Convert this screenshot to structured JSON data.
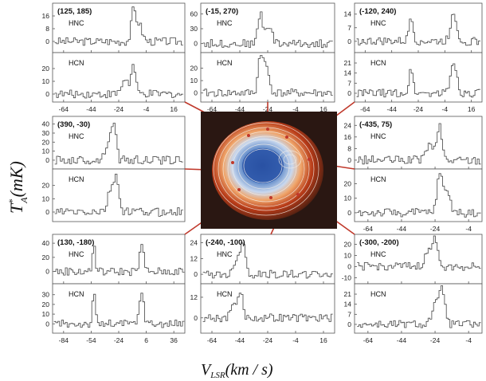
{
  "figure": {
    "ylabel_main": "T",
    "ylabel_sup": "*",
    "ylabel_sub": "A",
    "ylabel_unit": "(mK)",
    "xlabel_main": "V",
    "xlabel_sub": "LSR",
    "xlabel_unit": "(km / s)"
  },
  "chart_data": [
    {
      "type": "line",
      "title": "(125, 185)",
      "xticks": [
        -64,
        -44,
        -24,
        -4,
        16
      ],
      "xlim": [
        -72,
        24
      ],
      "series": [
        {
          "name": "HNC",
          "yticks": [
            0,
            8,
            16
          ],
          "ylim": [
            -6,
            22
          ],
          "peak_v": -14,
          "peak_t": 18,
          "peak2_v": -10,
          "peak2_t": 11
        },
        {
          "name": "HCN",
          "yticks": [
            0,
            10,
            20
          ],
          "ylim": [
            -5,
            30
          ],
          "peak_v": -14,
          "peak_t": 22,
          "peak2_v": -20,
          "peak2_t": 12
        }
      ]
    },
    {
      "type": "line",
      "title": "(-15, 270)",
      "xticks": [
        -64,
        -44,
        -24,
        -4,
        16
      ],
      "xlim": [
        -72,
        24
      ],
      "series": [
        {
          "name": "HNC",
          "yticks": [
            0,
            30,
            60
          ],
          "ylim": [
            -15,
            75
          ],
          "peak_v": -30,
          "peak_t": 62,
          "peak2_v": -24,
          "peak2_t": 38
        },
        {
          "name": "HCN",
          "yticks": [
            0,
            10,
            20
          ],
          "ylim": [
            -6,
            30
          ],
          "peak_v": -30,
          "peak_t": 28,
          "peak2_v": -26,
          "peak2_t": 22
        }
      ]
    },
    {
      "type": "line",
      "title": "(-120, 240)",
      "xticks": [
        -64,
        -44,
        -24,
        -4,
        16
      ],
      "xlim": [
        -72,
        24
      ],
      "series": [
        {
          "name": "HNC",
          "yticks": [
            0,
            7,
            14
          ],
          "ylim": [
            -5,
            18
          ],
          "peak_v": -30,
          "peak_t": 13,
          "peak2_v": 2,
          "peak2_t": 15
        },
        {
          "name": "HCN",
          "yticks": [
            0,
            7,
            14,
            21
          ],
          "ylim": [
            -5,
            26
          ],
          "peak_v": -30,
          "peak_t": 16,
          "peak2_v": 2,
          "peak2_t": 22
        }
      ]
    },
    {
      "type": "line",
      "title": "(390, -30)",
      "xticks": [],
      "xlim": [
        -72,
        24
      ],
      "series": [
        {
          "name": "HNC",
          "yticks": [
            0,
            10,
            20,
            30,
            40
          ],
          "ylim": [
            -8,
            45
          ],
          "peak_v": -28,
          "peak_t": 40,
          "peak2_v": -32,
          "peak2_t": 22
        },
        {
          "name": "HCN",
          "yticks": [
            0,
            10,
            20
          ],
          "ylim": [
            -6,
            30
          ],
          "peak_v": -26,
          "peak_t": 24,
          "peak2_v": -30,
          "peak2_t": 18
        }
      ]
    },
    {
      "type": "line",
      "title": "(-435, 75)",
      "xticks": [
        -64,
        -44,
        -24,
        -4
      ],
      "xlim": [
        -72,
        4
      ],
      "series": [
        {
          "name": "HNC",
          "yticks": [
            0,
            8,
            16,
            24
          ],
          "ylim": [
            -5,
            28
          ],
          "peak_v": -22,
          "peak_t": 23,
          "peak2_v": -28,
          "peak2_t": 10
        },
        {
          "name": "HCN",
          "yticks": [
            0,
            10,
            20
          ],
          "ylim": [
            -5,
            28
          ],
          "peak_v": -22,
          "peak_t": 22,
          "peak2_v": -18,
          "peak2_t": 16
        }
      ]
    },
    {
      "type": "line",
      "title": "(130, -180)",
      "xticks": [
        -84,
        -54,
        -24,
        6,
        36
      ],
      "xlim": [
        -96,
        48
      ],
      "series": [
        {
          "name": "HNC",
          "yticks": [
            0,
            20,
            40
          ],
          "ylim": [
            -15,
            48
          ],
          "peak_v": -52,
          "peak_t": 38,
          "peak2_v": 0,
          "peak2_t": 36
        },
        {
          "name": "HCN",
          "yticks": [
            0,
            10,
            20,
            30
          ],
          "ylim": [
            -8,
            38
          ],
          "peak_v": -52,
          "peak_t": 30,
          "peak2_v": 0,
          "peak2_t": 34
        }
      ]
    },
    {
      "type": "line",
      "title": "(-240, -100)",
      "xticks": [
        -64,
        -44,
        -24,
        -4,
        16
      ],
      "xlim": [
        -72,
        24
      ],
      "series": [
        {
          "name": "HNC",
          "yticks": [
            0,
            12,
            24
          ],
          "ylim": [
            -6,
            28
          ],
          "peak_v": -42,
          "peak_t": 22,
          "peak2_v": -46,
          "peak2_t": 15
        },
        {
          "name": "HCN",
          "yticks": [
            0,
            12
          ],
          "ylim": [
            -8,
            18
          ],
          "peak_v": -44,
          "peak_t": 13,
          "peak2_v": -48,
          "peak2_t": 9
        }
      ]
    },
    {
      "type": "line",
      "title": "(-300, -200)",
      "xticks": [
        -64,
        -44,
        -24,
        -4
      ],
      "xlim": [
        -72,
        4
      ],
      "series": [
        {
          "name": "HNC",
          "yticks": [
            -10,
            0,
            10,
            20
          ],
          "ylim": [
            -14,
            26
          ],
          "peak_v": -24,
          "peak_t": 22,
          "peak2_v": -28,
          "peak2_t": 14
        },
        {
          "name": "HCN",
          "yticks": [
            0,
            7,
            14,
            21
          ],
          "ylim": [
            -5,
            26
          ],
          "peak_v": -20,
          "peak_t": 22,
          "peak2_v": -24,
          "peak2_t": 14
        }
      ]
    }
  ]
}
